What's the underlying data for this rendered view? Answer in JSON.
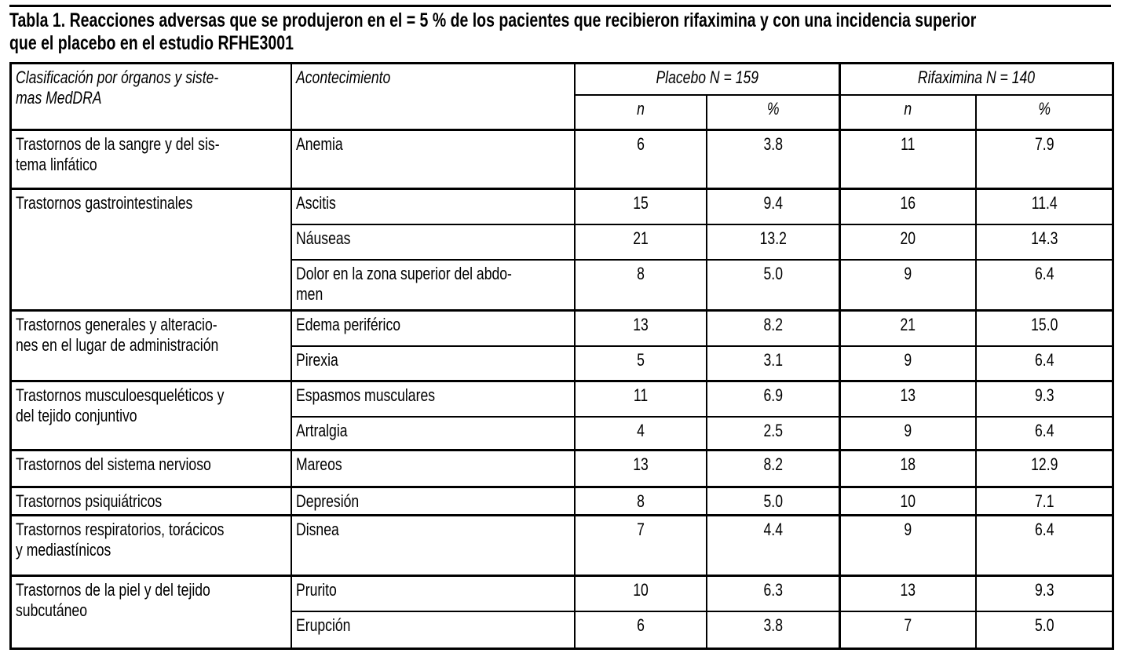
{
  "title": "Tabla 1. Reacciones adversas que se produjeron en el = 5 % de los pacientes que recibieron rifaximina y con una incidencia superior\nque el placebo en el estudio RFHE3001",
  "colors": {
    "text": "#000000",
    "background": "#ffffff",
    "border": "#000000"
  },
  "table": {
    "col_headers": {
      "classification": "Clasificación por órganos y siste-\nmas MedDRA",
      "event": "Acontecimiento",
      "placebo_group": "Placebo N = 159",
      "rifaximina_group": "Rifaximina N = 140",
      "n_label": "n",
      "pct_label": "%"
    },
    "groups": [
      {
        "classification": "Trastornos de la sangre y del sis-\ntema linfático",
        "rows": [
          {
            "event": "Anemia",
            "placebo_n": "6",
            "placebo_pct": "3.8",
            "rifaximina_n": "11",
            "rifaximina_pct": "7.9"
          }
        ]
      },
      {
        "classification": "Trastornos gastrointestinales",
        "rows": [
          {
            "event": "Ascitis",
            "placebo_n": "15",
            "placebo_pct": "9.4",
            "rifaximina_n": "16",
            "rifaximina_pct": "11.4"
          },
          {
            "event": "Náuseas",
            "placebo_n": "21",
            "placebo_pct": "13.2",
            "rifaximina_n": "20",
            "rifaximina_pct": "14.3"
          },
          {
            "event": "Dolor en la zona superior del abdo-\nmen",
            "placebo_n": "8",
            "placebo_pct": "5.0",
            "rifaximina_n": "9",
            "rifaximina_pct": "6.4"
          }
        ]
      },
      {
        "classification": "Trastornos generales y alteracio-\nnes en el lugar de administración",
        "rows": [
          {
            "event": "Edema periférico",
            "placebo_n": "13",
            "placebo_pct": "8.2",
            "rifaximina_n": "21",
            "rifaximina_pct": "15.0"
          },
          {
            "event": "Pirexia",
            "placebo_n": "5",
            "placebo_pct": "3.1",
            "rifaximina_n": "9",
            "rifaximina_pct": "6.4"
          }
        ]
      },
      {
        "classification": "Trastornos musculoesqueléticos y\ndel tejido conjuntivo",
        "rows": [
          {
            "event": "Espasmos musculares",
            "placebo_n": "11",
            "placebo_pct": "6.9",
            "rifaximina_n": "13",
            "rifaximina_pct": "9.3"
          },
          {
            "event": "Artralgia",
            "placebo_n": "4",
            "placebo_pct": "2.5",
            "rifaximina_n": "9",
            "rifaximina_pct": "6.4"
          }
        ]
      },
      {
        "classification": "Trastornos del sistema nervioso",
        "rows": [
          {
            "event": "Mareos",
            "placebo_n": "13",
            "placebo_pct": "8.2",
            "rifaximina_n": "18",
            "rifaximina_pct": "12.9"
          }
        ]
      },
      {
        "classification": "Trastornos psiquiátricos",
        "rows": [
          {
            "event": "Depresión",
            "placebo_n": "8",
            "placebo_pct": "5.0",
            "rifaximina_n": "10",
            "rifaximina_pct": "7.1"
          }
        ]
      },
      {
        "classification": "Trastornos respiratorios, torácicos\ny mediastínicos",
        "rows": [
          {
            "event": "Disnea",
            "placebo_n": "7",
            "placebo_pct": "4.4",
            "rifaximina_n": "9",
            "rifaximina_pct": "6.4"
          }
        ]
      },
      {
        "classification": "Trastornos de la piel y del tejido\nsubcutáneo",
        "rows": [
          {
            "event": "Prurito",
            "placebo_n": "10",
            "placebo_pct": "6.3",
            "rifaximina_n": "13",
            "rifaximina_pct": "9.3"
          },
          {
            "event": "Erupción",
            "placebo_n": "6",
            "placebo_pct": "3.8",
            "rifaximina_n": "7",
            "rifaximina_pct": "5.0"
          }
        ]
      }
    ]
  }
}
